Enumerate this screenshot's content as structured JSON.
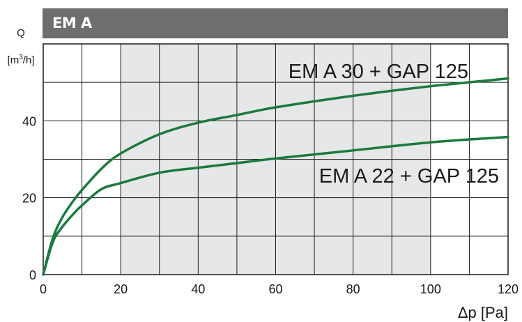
{
  "header": {
    "title": "EM A",
    "background": "#6d6e70"
  },
  "chart_data": {
    "type": "line",
    "title": "EM A",
    "xlabel": "Δp [Pa]",
    "ylabel_top": "Q",
    "ylabel_unit": "[m³/h]",
    "xlim": [
      0,
      120
    ],
    "ylim": [
      0,
      60
    ],
    "x_ticks": [
      0,
      20,
      40,
      60,
      80,
      100,
      120
    ],
    "y_ticks": [
      0,
      20,
      40
    ],
    "x_grid_step": 10,
    "y_grid_step": 10,
    "grid": true,
    "highlight_band": {
      "x_from": 20,
      "x_to": 100,
      "color": "#e6e7e8"
    },
    "line_color": "#1a7a3c",
    "series": [
      {
        "name": "EM A 30 + GAP 125",
        "x": [
          0,
          2.5,
          5,
          8,
          10,
          15,
          20,
          30,
          40,
          50,
          60,
          80,
          100,
          120
        ],
        "values": [
          0,
          9.5,
          15,
          19.5,
          22,
          27.5,
          31.5,
          36.5,
          39.5,
          41.5,
          43.5,
          46.5,
          49,
          51
        ]
      },
      {
        "name": "EM A 22 + GAP 125",
        "x": [
          0,
          2.5,
          5,
          8,
          10,
          15,
          20,
          30,
          40,
          50,
          60,
          80,
          100,
          120
        ],
        "values": [
          0,
          8.5,
          12.5,
          16,
          18,
          22.2,
          23.8,
          26.5,
          27.8,
          29,
          30.2,
          32.3,
          34.4,
          35.8
        ]
      }
    ]
  }
}
